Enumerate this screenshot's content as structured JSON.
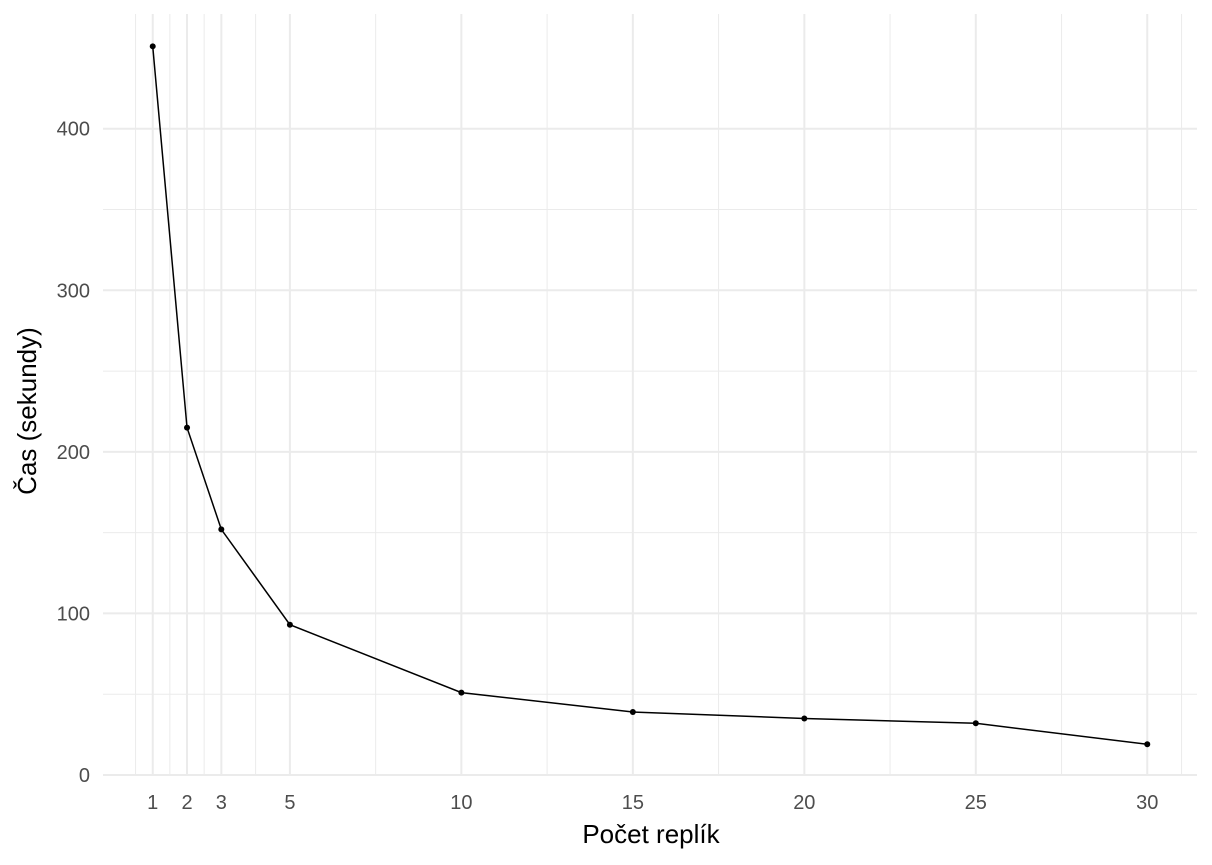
{
  "chart_data": {
    "type": "line",
    "title": "",
    "xlabel": "Počet replík",
    "ylabel": "Čas (sekundy)",
    "x": [
      1,
      2,
      3,
      5,
      10,
      15,
      20,
      25,
      30
    ],
    "series": [
      {
        "values": [
          451,
          215,
          152,
          93,
          51,
          39,
          35,
          32,
          19
        ]
      }
    ],
    "x_ticks": [
      1,
      2,
      3,
      5,
      10,
      15,
      20,
      25,
      30
    ],
    "y_ticks": [
      0,
      100,
      200,
      300,
      400
    ],
    "x_minor_grid": [
      0.5,
      1.5,
      2.5,
      4,
      7.5,
      12.5,
      17.5,
      22.5,
      27.5,
      31
    ],
    "y_minor_grid": [
      50,
      150,
      250,
      350
    ],
    "xlim": [
      -0.45,
      31.45
    ],
    "ylim": [
      0,
      471
    ],
    "grid": true,
    "legend": "none",
    "line_color": "#000000",
    "grid_color": "#ebebeb"
  }
}
